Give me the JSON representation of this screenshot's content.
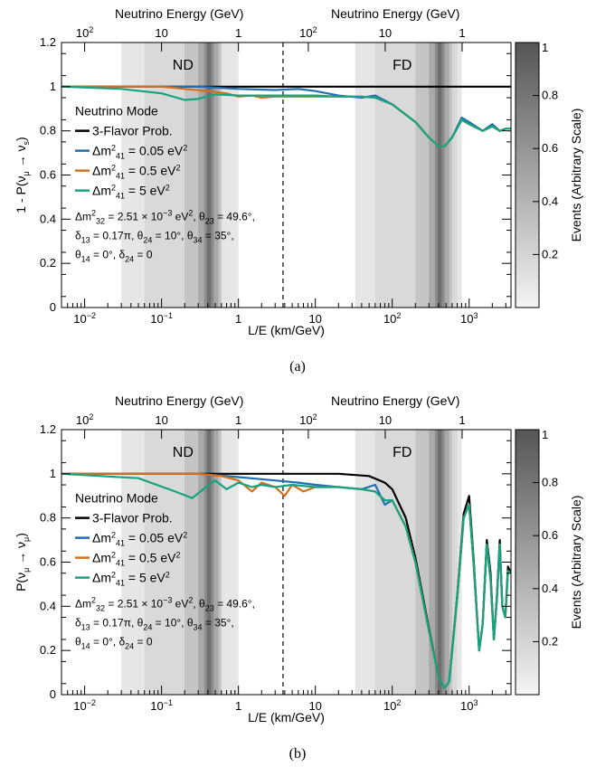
{
  "chart_data": [
    {
      "type": "line",
      "panel": "a",
      "caption": "(a)",
      "ylabel": "1 - P(ν_μ → ν_s)",
      "xlabel": "L/E (km/GeV)",
      "top_xlabel_left": "Neutrino Energy (GeV)",
      "top_xlabel_right": "Neutrino Energy (GeV)",
      "colorbar_label": "Events (Arbitrary Scale)",
      "detector_labels": [
        "ND",
        "FD"
      ],
      "legend_title": "Neutrino Mode",
      "xscale": "log",
      "xlim": [
        0.005,
        3500
      ],
      "ylim": [
        0,
        1.2
      ],
      "params": [
        "Δm²32 = 2.51×10⁻³ eV², θ23 = 49.6°,",
        "δ13 = 0.17π, θ24 = 10°, θ34 = 35°,",
        "θ14 = 0°, δ24 = 0"
      ],
      "series": [
        {
          "name": "3-Flavor Prob.",
          "color": "#000000",
          "x": [
            0.005,
            3500
          ],
          "y": [
            1.0,
            1.0
          ]
        },
        {
          "name": "Δm²41 = 0.05 eV²",
          "color": "#1f6fb2",
          "x": [
            0.005,
            0.05,
            0.3,
            1,
            3,
            6,
            10,
            20,
            40,
            60,
            100,
            200,
            300,
            400,
            480,
            600,
            800,
            1000,
            1500,
            2000,
            2500,
            3000,
            3500
          ],
          "y": [
            1.0,
            1.0,
            1.0,
            0.99,
            0.985,
            0.99,
            0.98,
            0.96,
            0.95,
            0.96,
            0.92,
            0.84,
            0.77,
            0.73,
            0.73,
            0.77,
            0.86,
            0.84,
            0.8,
            0.83,
            0.8,
            0.81,
            0.81
          ]
        },
        {
          "name": "Δm²41 = 0.5 eV²",
          "color": "#d4701c",
          "x": [
            0.005,
            0.05,
            0.1,
            0.2,
            0.4,
            0.7,
            1,
            1.5,
            2,
            3,
            5,
            10,
            20,
            40,
            60,
            100,
            200,
            300,
            400,
            480,
            600,
            800,
            1000,
            1500,
            2000,
            2500,
            3000,
            3500
          ],
          "y": [
            1.0,
            1.0,
            1.0,
            0.99,
            0.98,
            0.97,
            0.955,
            0.96,
            0.95,
            0.955,
            0.955,
            0.955,
            0.955,
            0.955,
            0.95,
            0.92,
            0.84,
            0.77,
            0.73,
            0.73,
            0.77,
            0.85,
            0.83,
            0.8,
            0.82,
            0.8,
            0.81,
            0.81
          ]
        },
        {
          "name": "Δm²41 = 5 eV²",
          "color": "#16a37f",
          "x": [
            0.005,
            0.03,
            0.1,
            0.2,
            0.3,
            0.5,
            1,
            2,
            5,
            10,
            20,
            40,
            60,
            100,
            200,
            300,
            400,
            480,
            600,
            800,
            1000,
            1500,
            2000,
            2500,
            3000,
            3500
          ],
          "y": [
            1.0,
            0.99,
            0.97,
            0.94,
            0.945,
            0.965,
            0.96,
            0.96,
            0.96,
            0.96,
            0.955,
            0.955,
            0.95,
            0.92,
            0.84,
            0.77,
            0.73,
            0.73,
            0.77,
            0.85,
            0.83,
            0.8,
            0.82,
            0.8,
            0.81,
            0.81
          ]
        }
      ]
    },
    {
      "type": "line",
      "panel": "b",
      "caption": "(b)",
      "ylabel": "P(ν_μ → ν_μ)",
      "xlabel": "L/E (km/GeV)",
      "top_xlabel_left": "Neutrino Energy (GeV)",
      "top_xlabel_right": "Neutrino Energy (GeV)",
      "colorbar_label": "Events (Arbitrary Scale)",
      "detector_labels": [
        "ND",
        "FD"
      ],
      "legend_title": "Neutrino Mode",
      "xscale": "log",
      "xlim": [
        0.005,
        3500
      ],
      "ylim": [
        0,
        1.2
      ],
      "params": [
        "Δm²32 = 2.51×10⁻³ eV², θ23 = 49.6°,",
        "δ13 = 0.17π, θ24 = 10°, θ34 = 35°,",
        "θ14 = 0°, δ24 = 0"
      ],
      "series": [
        {
          "name": "3-Flavor Prob.",
          "color": "#000000",
          "x": [
            0.005,
            20,
            50,
            80,
            100,
            150,
            200,
            300,
            400,
            480,
            550,
            700,
            850,
            1000,
            1150,
            1350,
            1500,
            1700,
            1900,
            2100,
            2300,
            2500,
            2700,
            2950,
            3200,
            3500
          ],
          "y": [
            1.0,
            1.0,
            0.99,
            0.96,
            0.93,
            0.8,
            0.62,
            0.3,
            0.08,
            0.03,
            0.06,
            0.45,
            0.82,
            0.9,
            0.6,
            0.2,
            0.32,
            0.7,
            0.55,
            0.25,
            0.45,
            0.7,
            0.4,
            0.35,
            0.58,
            0.55
          ]
        },
        {
          "name": "Δm²41 = 0.05 eV²",
          "color": "#1f6fb2",
          "x": [
            0.005,
            0.3,
            1,
            3,
            6,
            10,
            20,
            40,
            60,
            80,
            100,
            150,
            200,
            300,
            400,
            480,
            550,
            700,
            850,
            1000,
            1150,
            1350,
            1500,
            1700,
            1900,
            2100,
            2300,
            2500,
            2700,
            2950,
            3200,
            3500
          ],
          "y": [
            1.0,
            1.0,
            0.985,
            0.97,
            0.96,
            0.95,
            0.94,
            0.93,
            0.95,
            0.86,
            0.88,
            0.76,
            0.6,
            0.29,
            0.08,
            0.03,
            0.06,
            0.44,
            0.8,
            0.86,
            0.58,
            0.2,
            0.32,
            0.68,
            0.52,
            0.25,
            0.44,
            0.68,
            0.4,
            0.35,
            0.56,
            0.55
          ]
        },
        {
          "name": "Δm²41 = 0.5 eV²",
          "color": "#d4701c",
          "x": [
            0.005,
            0.3,
            0.6,
            1,
            1.5,
            2,
            3,
            4,
            5,
            7,
            10,
            20,
            40,
            60,
            80,
            100,
            150,
            200,
            300,
            400,
            480,
            550,
            700,
            850,
            1000,
            1150,
            1350,
            1500,
            1700,
            1900,
            2100,
            2300,
            2500,
            2700,
            2950,
            3200,
            3500
          ],
          "y": [
            1.0,
            1.0,
            0.99,
            0.97,
            0.92,
            0.96,
            0.94,
            0.9,
            0.95,
            0.92,
            0.94,
            0.94,
            0.93,
            0.92,
            0.88,
            0.88,
            0.76,
            0.6,
            0.29,
            0.08,
            0.03,
            0.06,
            0.44,
            0.8,
            0.86,
            0.58,
            0.2,
            0.32,
            0.68,
            0.52,
            0.25,
            0.44,
            0.68,
            0.4,
            0.35,
            0.56,
            0.55
          ]
        },
        {
          "name": "Δm²41 = 5 eV²",
          "color": "#16a37f",
          "x": [
            0.005,
            0.05,
            0.15,
            0.25,
            0.35,
            0.5,
            0.7,
            1,
            1.5,
            2,
            3,
            5,
            10,
            20,
            40,
            60,
            80,
            100,
            150,
            200,
            300,
            400,
            480,
            550,
            700,
            850,
            1000,
            1150,
            1350,
            1500,
            1700,
            1900,
            2100,
            2300,
            2500,
            2700,
            2950,
            3200,
            3500
          ],
          "y": [
            1.0,
            0.98,
            0.92,
            0.89,
            0.93,
            0.97,
            0.93,
            0.96,
            0.94,
            0.95,
            0.94,
            0.95,
            0.94,
            0.94,
            0.93,
            0.92,
            0.88,
            0.88,
            0.76,
            0.6,
            0.29,
            0.08,
            0.03,
            0.06,
            0.44,
            0.8,
            0.86,
            0.58,
            0.2,
            0.32,
            0.68,
            0.52,
            0.25,
            0.44,
            0.68,
            0.4,
            0.35,
            0.56,
            0.55
          ]
        }
      ]
    }
  ]
}
